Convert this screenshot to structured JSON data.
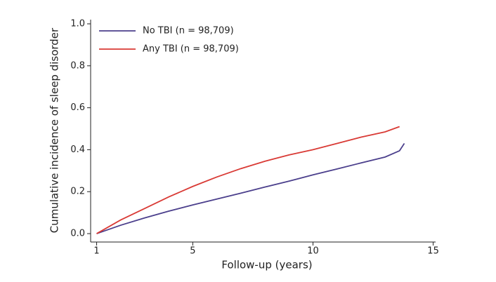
{
  "chart_data": {
    "type": "line",
    "x_label": "Follow-up (years)",
    "y_label": "Cumulative incidence of sleep disorder",
    "x": [
      1,
      2,
      3,
      4,
      5,
      6,
      7,
      8,
      9,
      10,
      11,
      12,
      13,
      13.6,
      13.8
    ],
    "series": [
      {
        "name": "No TBI (n = 98,709)",
        "color": "#4b3f8c",
        "values": [
          0,
          0.04,
          0.075,
          0.107,
          0.137,
          0.165,
          0.193,
          0.222,
          0.25,
          0.28,
          0.308,
          0.337,
          0.365,
          0.395,
          0.43
        ]
      },
      {
        "name": "Any TBI (n = 98,709)",
        "color": "#d93a35",
        "values": [
          0,
          0.065,
          0.12,
          0.175,
          0.225,
          0.27,
          0.31,
          0.345,
          0.375,
          0.4,
          0.43,
          0.46,
          0.485,
          0.51,
          null
        ]
      }
    ],
    "xlim": [
      0.75,
      15.1
    ],
    "ylim": [
      -0.04,
      1.02
    ],
    "xticks": [
      1,
      5,
      10,
      15
    ],
    "yticks": [
      {
        "value": 0,
        "label": "0.0"
      },
      0.2,
      0.4,
      0.6,
      0.8,
      {
        "value": 1,
        "label": "1.0"
      }
    ],
    "grid": false,
    "legend": "upper-left"
  }
}
